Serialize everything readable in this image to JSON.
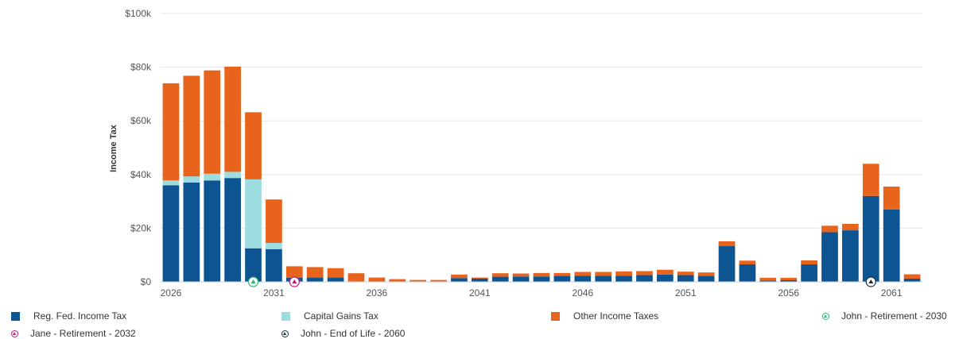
{
  "chart_data": {
    "type": "bar",
    "stacked": true,
    "title": "",
    "xlabel": "",
    "ylabel": "Income Tax",
    "ylim": [
      0,
      100000
    ],
    "yticks": [
      0,
      20000,
      40000,
      60000,
      80000,
      100000
    ],
    "ytick_labels": [
      "$0",
      "$20k",
      "$40k",
      "$60k",
      "$80k",
      "$100k"
    ],
    "xtick_labels": [
      "2026",
      "2031",
      "2036",
      "2041",
      "2046",
      "2051",
      "2056",
      "2061"
    ],
    "categories": [
      2026,
      2027,
      2028,
      2029,
      2030,
      2031,
      2032,
      2033,
      2034,
      2035,
      2036,
      2037,
      2038,
      2039,
      2040,
      2041,
      2042,
      2043,
      2044,
      2045,
      2046,
      2047,
      2048,
      2049,
      2050,
      2051,
      2052,
      2053,
      2054,
      2055,
      2056,
      2057,
      2058,
      2059,
      2060,
      2061,
      2062
    ],
    "grid": true,
    "legend_position": "bottom",
    "series": [
      {
        "name": "Reg. Fed. Income Tax",
        "color": "#0c5592",
        "values": [
          36000,
          37000,
          37800,
          38700,
          12500,
          12200,
          1500,
          1600,
          1600,
          0,
          0,
          0,
          0,
          0,
          1400,
          1200,
          1900,
          2000,
          2000,
          2200,
          2300,
          2300,
          2300,
          2500,
          2700,
          2500,
          2200,
          13300,
          6500,
          500,
          600,
          6500,
          18500,
          19200,
          32000,
          27000,
          1200
        ]
      },
      {
        "name": "Capital Gains Tax",
        "color": "#9ddde0",
        "values": [
          1800,
          2300,
          2500,
          2300,
          25700,
          2300,
          0,
          0,
          0,
          0,
          0,
          0,
          0,
          0,
          0,
          0,
          0,
          0,
          0,
          0,
          0,
          0,
          0,
          0,
          0,
          0,
          0,
          0,
          0,
          0,
          0,
          0,
          0,
          0,
          0,
          0,
          0
        ]
      },
      {
        "name": "Other Income Taxes",
        "color": "#e8631c",
        "values": [
          36200,
          37500,
          38500,
          39200,
          25000,
          16200,
          4300,
          3900,
          3500,
          3200,
          1600,
          1000,
          700,
          700,
          1300,
          400,
          1300,
          1100,
          1300,
          1100,
          1400,
          1400,
          1600,
          1500,
          1800,
          1300,
          1300,
          1800,
          1400,
          1000,
          900,
          1500,
          2400,
          2400,
          12000,
          8500,
          1600
        ]
      }
    ],
    "annotations": [
      {
        "label": "John - Retirement - 2030",
        "x": 2030,
        "color": "#2bb673",
        "symbol": "up-triangle-circle"
      },
      {
        "label": "Jane - Retirement - 2032",
        "x": 2032,
        "color": "#c2187b",
        "symbol": "up-triangle-circle"
      },
      {
        "label": "John - End of Life - 2060",
        "x": 2060,
        "color": "#1f2d3d",
        "symbol": "up-triangle-circle"
      }
    ]
  }
}
